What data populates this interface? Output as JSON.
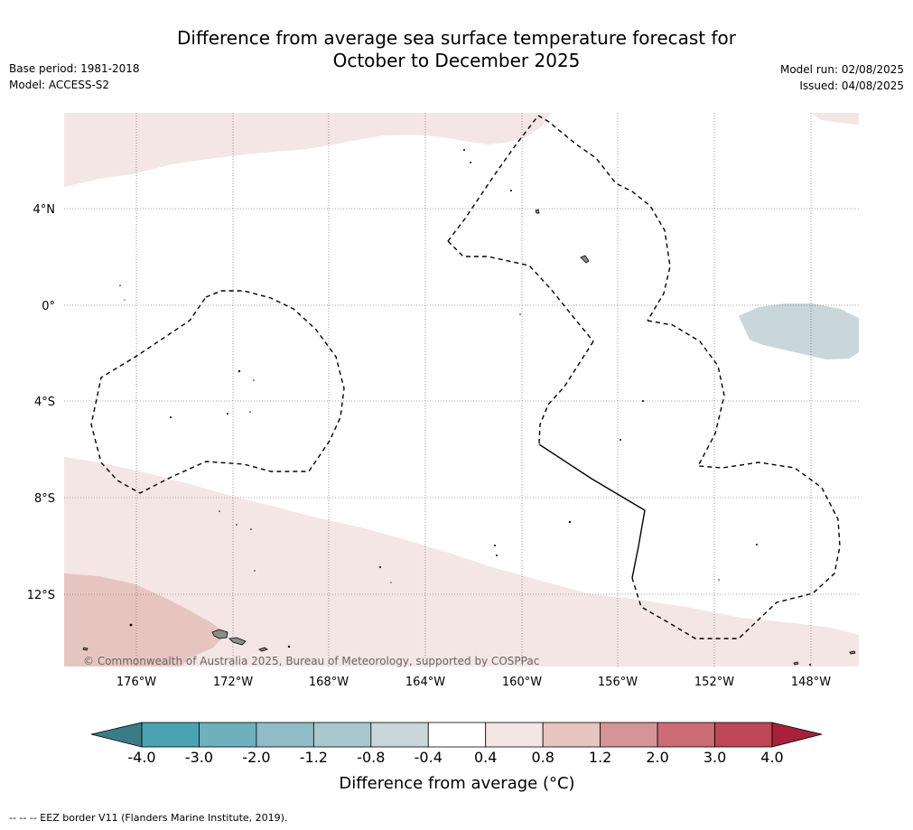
{
  "header": {
    "title_line1": "Difference from average sea surface temperature forecast for",
    "title_line2": "October to December 2025",
    "base_period": "Base period: 1981-2018",
    "model": "Model: ACCESS-S2",
    "model_run": "Model run: 02/08/2025",
    "issued": "Issued: 04/08/2025"
  },
  "map": {
    "lat_labels": [
      "4°N",
      "0°",
      "4°S",
      "8°S",
      "12°S"
    ],
    "lon_labels": [
      "176°W",
      "172°W",
      "168°W",
      "164°W",
      "160°W",
      "156°W",
      "152°W",
      "148°W"
    ],
    "copyright": "© Commonwealth of Australia 2025, Bureau of Meteorology, supported by COSPPac",
    "colors": {
      "anomaly_0_4_to_0_8": "#f4e6e5",
      "anomaly_0_8_to_1_2": "#e6c5c1",
      "anomaly_neg_0_8_to_neg_0_4": "#c9d6da",
      "land": "#8c8c8c",
      "gridline": "#555555"
    }
  },
  "colorbar": {
    "tick_labels": [
      "-4.0",
      "-3.0",
      "-2.0",
      "-1.2",
      "-0.8",
      "-0.4",
      "0.4",
      "0.8",
      "1.2",
      "2.0",
      "3.0",
      "4.0"
    ],
    "colors": [
      "#4aa3b3",
      "#6eb0bd",
      "#8fbcc6",
      "#aac7cd",
      "#c9d6da",
      "#ffffff",
      "#f4e6e5",
      "#e6c5c1",
      "#d79497",
      "#cc6b75",
      "#c04756"
    ],
    "under_color": "#3a7b88",
    "over_color": "#a8203a",
    "label": "Difference from average (°C)"
  },
  "footer": {
    "eez_legend": "-- -- -- EEZ border V11 (Flanders Marine Institute, 2019)."
  }
}
